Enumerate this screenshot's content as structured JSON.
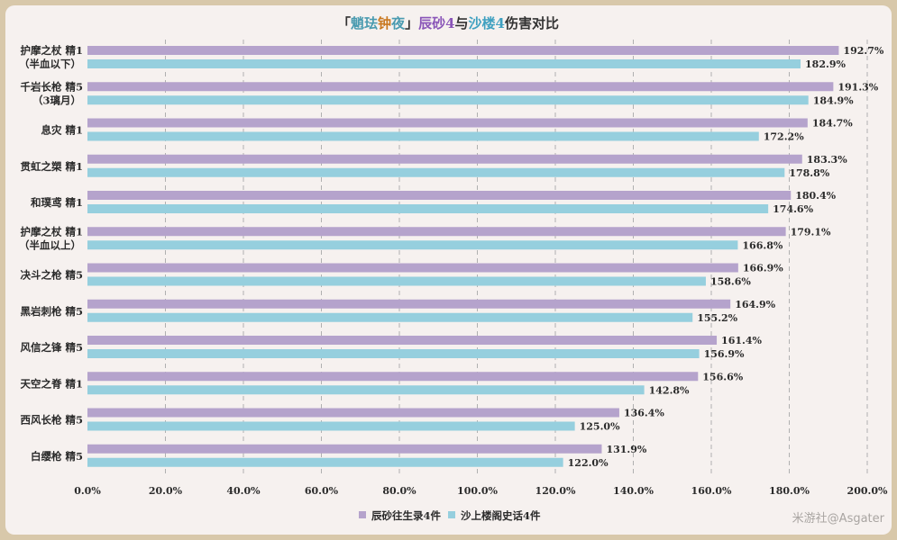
{
  "title_parts": [
    {
      "text": "「",
      "color": "#333333"
    },
    {
      "text": "魈",
      "color": "#4a9bb0"
    },
    {
      "text": "珐",
      "color": "#4a9bb0"
    },
    {
      "text": "钟",
      "color": "#c9781f"
    },
    {
      "text": "夜",
      "color": "#4a9bb0"
    },
    {
      "text": "」",
      "color": "#333333"
    },
    {
      "text": "辰砂4",
      "color": "#8a55b8"
    },
    {
      "text": "与",
      "color": "#333333"
    },
    {
      "text": "沙楼4",
      "color": "#3fa0c0"
    },
    {
      "text": "伤害对比",
      "color": "#333333"
    }
  ],
  "watermark": "米游社@Asgater",
  "colors": {
    "series1": "#b5a3cc",
    "series2": "#96cfde",
    "grid": "#b0b0b0",
    "background": "#f6f1ef",
    "frame": "#d8c8aa"
  },
  "chart_data": {
    "type": "bar",
    "orientation": "horizontal",
    "categories": [
      [
        "护摩之杖 精1",
        "（半血以下）"
      ],
      [
        "千岩长枪 精5",
        "（3璃月）"
      ],
      [
        "息灾 精1"
      ],
      [
        "贯虹之槊 精1"
      ],
      [
        "和璞鸢 精1"
      ],
      [
        "护摩之杖 精1",
        "（半血以上）"
      ],
      [
        "决斗之枪 精5"
      ],
      [
        "黑岩刺枪 精5"
      ],
      [
        "风信之锋 精5"
      ],
      [
        "天空之脊 精1"
      ],
      [
        "西风长枪 精5"
      ],
      [
        "白缨枪 精5"
      ]
    ],
    "series": [
      {
        "name": "辰砂往生录4件",
        "values": [
          192.7,
          191.3,
          184.7,
          183.3,
          180.4,
          179.1,
          166.9,
          164.9,
          161.4,
          156.6,
          136.4,
          131.9
        ],
        "labels": [
          "192.7%",
          "191.3%",
          "184.7%",
          "183.3%",
          "180.4%",
          "179.1%",
          "166.9%",
          "164.9%",
          "161.4%",
          "156.6%",
          "136.4%",
          "131.9%"
        ]
      },
      {
        "name": "沙上楼阁史话4件",
        "values": [
          182.9,
          184.9,
          172.2,
          178.8,
          174.6,
          166.8,
          158.6,
          155.2,
          156.9,
          142.8,
          125.0,
          122.0
        ],
        "labels": [
          "182.9%",
          "184.9%",
          "172.2%",
          "178.8%",
          "174.6%",
          "166.8%",
          "158.6%",
          "155.2%",
          "156.9%",
          "142.8%",
          "125.0%",
          "122.0%"
        ]
      }
    ],
    "xlim": [
      0,
      200
    ],
    "xticks": [
      "0.0%",
      "20.0%",
      "40.0%",
      "60.0%",
      "80.0%",
      "100.0%",
      "120.0%",
      "140.0%",
      "160.0%",
      "180.0%",
      "200.0%"
    ],
    "grid": "vertical dashed",
    "legend": "bottom"
  }
}
